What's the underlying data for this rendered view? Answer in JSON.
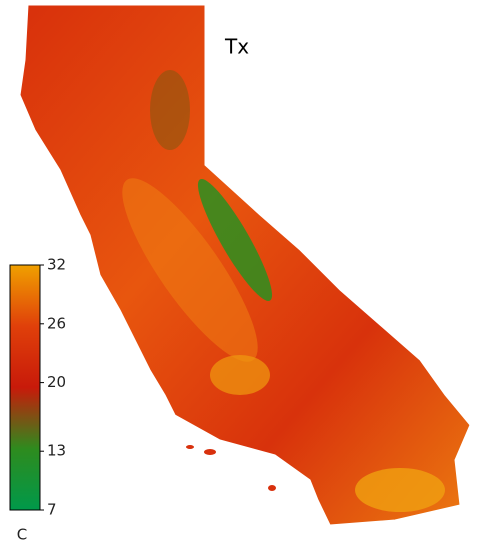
{
  "title": "Tx",
  "colorbar": {
    "lim": [
      7,
      32
    ],
    "ticks": [
      32,
      26,
      20,
      13,
      7
    ],
    "unit": "C",
    "colors": [
      "#00994a",
      "#2e8b1e",
      "#c81a0a",
      "#e0400a",
      "#f0a000"
    ]
  }
}
